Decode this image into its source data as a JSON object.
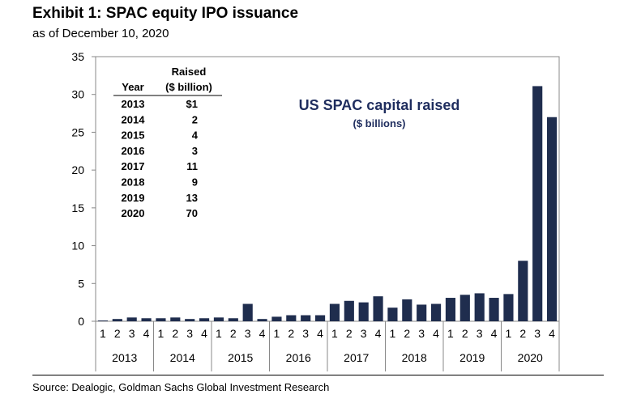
{
  "exhibit": {
    "title": "Exhibit 1: SPAC equity IPO issuance",
    "subtitle": "as of December 10, 2020",
    "source": "Source: Dealogic, Goldman Sachs Global Investment Research"
  },
  "inset_table": {
    "col_year": "Year",
    "col_raised_line1": "Raised",
    "col_raised_line2": "($ billion)",
    "rows": [
      {
        "year": "2013",
        "raised": "$1"
      },
      {
        "year": "2014",
        "raised": "2"
      },
      {
        "year": "2015",
        "raised": "4"
      },
      {
        "year": "2016",
        "raised": "3"
      },
      {
        "year": "2017",
        "raised": "11"
      },
      {
        "year": "2018",
        "raised": "9"
      },
      {
        "year": "2019",
        "raised": "13"
      },
      {
        "year": "2020",
        "raised": "70"
      }
    ]
  },
  "chart_data": {
    "type": "bar",
    "title": "US SPAC capital raised",
    "subtitle": "($ billions)",
    "xlabel": "",
    "ylabel": "",
    "ylim": [
      0,
      35
    ],
    "yticks": [
      0,
      5,
      10,
      15,
      20,
      25,
      30,
      35
    ],
    "grid": false,
    "bar_color": "#1f2d4e",
    "quarter_labels": [
      "1",
      "2",
      "3",
      "4",
      "1",
      "2",
      "3",
      "4",
      "1",
      "2",
      "3",
      "4",
      "1",
      "2",
      "3",
      "4",
      "1",
      "2",
      "3",
      "4",
      "1",
      "2",
      "3",
      "4",
      "1",
      "2",
      "3",
      "4",
      "1",
      "2",
      "3",
      "4"
    ],
    "year_labels": [
      "2013",
      "2014",
      "2015",
      "2016",
      "2017",
      "2018",
      "2019",
      "2020"
    ],
    "categories": [
      "2013 Q1",
      "2013 Q2",
      "2013 Q3",
      "2013 Q4",
      "2014 Q1",
      "2014 Q2",
      "2014 Q3",
      "2014 Q4",
      "2015 Q1",
      "2015 Q2",
      "2015 Q3",
      "2015 Q4",
      "2016 Q1",
      "2016 Q2",
      "2016 Q3",
      "2016 Q4",
      "2017 Q1",
      "2017 Q2",
      "2017 Q3",
      "2017 Q4",
      "2018 Q1",
      "2018 Q2",
      "2018 Q3",
      "2018 Q4",
      "2019 Q1",
      "2019 Q2",
      "2019 Q3",
      "2019 Q4",
      "2020 Q1",
      "2020 Q2",
      "2020 Q3",
      "2020 Q4"
    ],
    "values": [
      0.1,
      0.3,
      0.5,
      0.4,
      0.4,
      0.5,
      0.3,
      0.4,
      0.5,
      0.4,
      2.3,
      0.3,
      0.6,
      0.8,
      0.8,
      0.8,
      2.3,
      2.7,
      2.5,
      3.3,
      1.8,
      2.9,
      2.2,
      2.3,
      3.1,
      3.5,
      3.7,
      3.1,
      3.6,
      8.0,
      31.1,
      27.0
    ]
  }
}
